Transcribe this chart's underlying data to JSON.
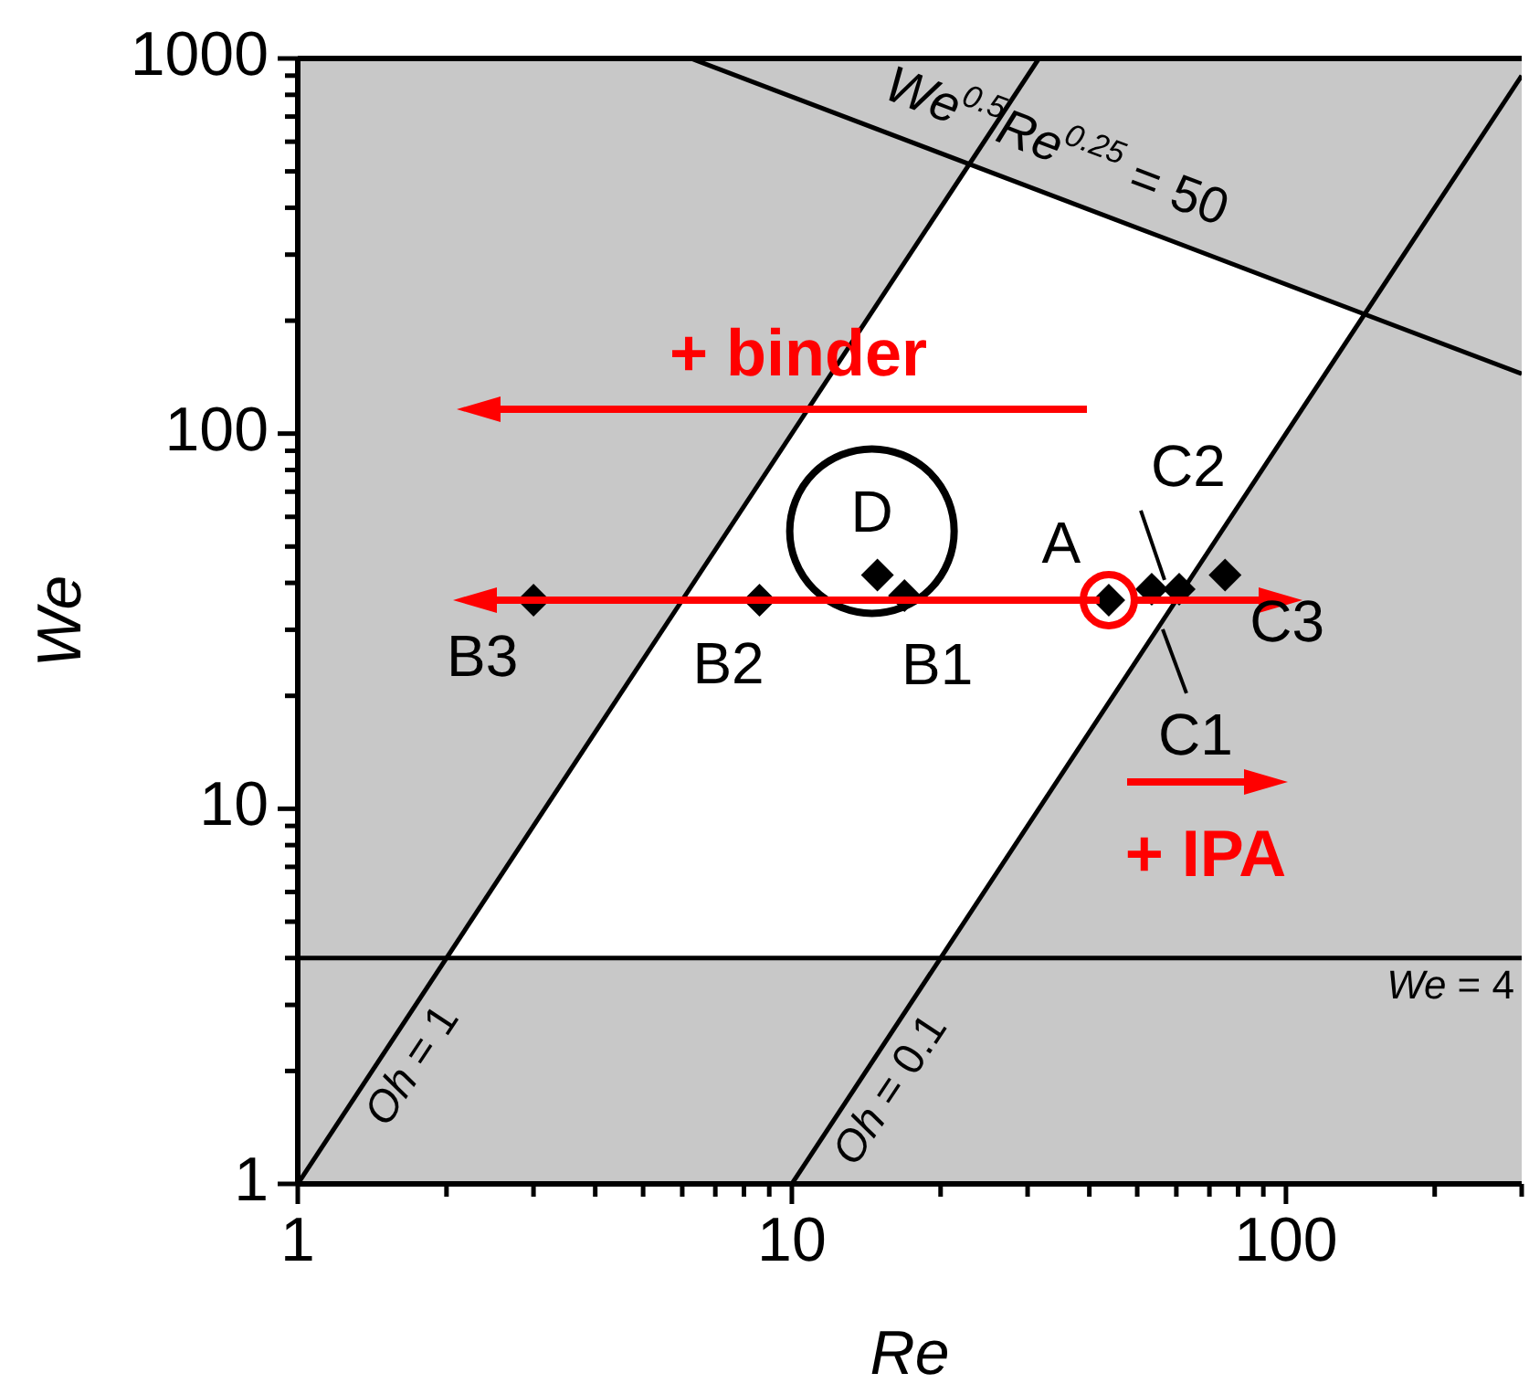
{
  "chart_data": {
    "type": "scatter",
    "xlabel": "Re",
    "ylabel": "We",
    "log": "xy",
    "grid": false,
    "xlim": [
      1,
      300
    ],
    "ylim": [
      1,
      1000
    ],
    "xticks": [
      1,
      {
        "value": 2,
        "label": null
      },
      {
        "value": 3,
        "label": null
      },
      {
        "value": 4,
        "label": null
      },
      {
        "value": 5,
        "label": null
      },
      {
        "value": 6,
        "label": null
      },
      {
        "value": 7,
        "label": null
      },
      {
        "value": 8,
        "label": null
      },
      {
        "value": 9,
        "label": null
      },
      10,
      {
        "value": 20,
        "label": null
      },
      {
        "value": 30,
        "label": null
      },
      {
        "value": 40,
        "label": null
      },
      {
        "value": 50,
        "label": null
      },
      {
        "value": 60,
        "label": null
      },
      {
        "value": 70,
        "label": null
      },
      {
        "value": 80,
        "label": null
      },
      {
        "value": 90,
        "label": null
      },
      100,
      {
        "value": 200,
        "label": null
      },
      {
        "value": 300,
        "label": null
      }
    ],
    "yticks": [
      1,
      {
        "value": 2,
        "label": null
      },
      {
        "value": 3,
        "label": null
      },
      {
        "value": 4,
        "label": null
      },
      {
        "value": 5,
        "label": null
      },
      {
        "value": 6,
        "label": null
      },
      {
        "value": 7,
        "label": null
      },
      {
        "value": 8,
        "label": null
      },
      {
        "value": 9,
        "label": null
      },
      10,
      {
        "value": 20,
        "label": null
      },
      {
        "value": 30,
        "label": null
      },
      {
        "value": 40,
        "label": null
      },
      {
        "value": 50,
        "label": null
      },
      {
        "value": 60,
        "label": null
      },
      {
        "value": 70,
        "label": null
      },
      {
        "value": 80,
        "label": null
      },
      {
        "value": 90,
        "label": null
      },
      100,
      {
        "value": 200,
        "label": null
      },
      {
        "value": 300,
        "label": null
      },
      {
        "value": 400,
        "label": null
      },
      {
        "value": 500,
        "label": null
      },
      {
        "value": 600,
        "label": null
      },
      {
        "value": 700,
        "label": null
      },
      {
        "value": 800,
        "label": null
      },
      {
        "value": 900,
        "label": null
      },
      1000
    ],
    "series": [
      {
        "type": "area",
        "color": "#ffffff",
        "x": [
          2,
          20,
          144.3,
          22.9
        ],
        "values": [
          4,
          4,
          208,
          524
        ]
      },
      {
        "type": "line",
        "name": "Oh = 1",
        "color": "#000000",
        "x": [
          1,
          31.62
        ],
        "values": [
          1,
          1000
        ]
      },
      {
        "type": "line",
        "name": "Oh = 0.1",
        "color": "#000000",
        "x": [
          10,
          300
        ],
        "values": [
          1,
          900
        ]
      },
      {
        "type": "line",
        "name": "We$^{0.5}$Re$^{0.25}$ = 50",
        "color": "#000000",
        "x": [
          6.25,
          300
        ],
        "values": [
          1000,
          144.3
        ]
      },
      {
        "marker": "diamond",
        "color": "#000000",
        "x": [
          3.0,
          8.6,
          14.9,
          16.9,
          43.8,
          53.5,
          60.8,
          75.3
        ],
        "values": [
          36,
          36,
          42,
          37,
          36,
          38.5,
          38.5,
          42
        ]
      }
    ],
    "ref_lines": [
      {
        "axis": "y",
        "value": 4,
        "label": "We = 4",
        "color": "#000000"
      }
    ],
    "annotations": [
      {
        "text": "B3",
        "x": 3.0,
        "y": 36
      },
      {
        "text": "B2",
        "x": 8.6,
        "y": 36
      },
      {
        "text": "D",
        "x": 14.9,
        "y": 42
      },
      {
        "text": "B1",
        "x": 16.9,
        "y": 37
      },
      {
        "text": "A",
        "x": 43.8,
        "y": 36
      },
      {
        "text": "C1",
        "x": 53.5,
        "y": 38.5
      },
      {
        "text": "C2",
        "x": 60.8,
        "y": 38.5
      },
      {
        "text": "C3",
        "x": 75.3,
        "y": 42
      },
      "+ binder",
      "+ IPA"
    ]
  }
}
